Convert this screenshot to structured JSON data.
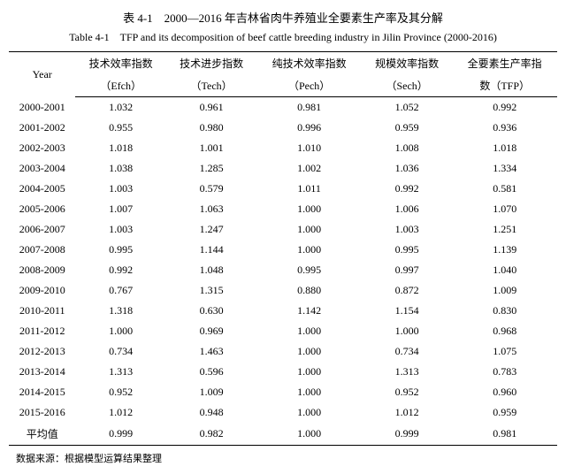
{
  "title_cn": "表 4-1　2000—2016 年吉林省肉牛养殖业全要素生产率及其分解",
  "title_en": "Table 4-1　TFP and its decomposition of beef cattle breeding industry in Jilin Province (2000-2016)",
  "headers": {
    "year": "Year",
    "c1a": "技术效率指数",
    "c1b": "（Efch）",
    "c2a": "技术进步指数",
    "c2b": "（Tech）",
    "c3a": "纯技术效率指数",
    "c3b": "（Pech）",
    "c4a": "规模效率指数",
    "c4b": "（Sech）",
    "c5a": "全要素生产率指",
    "c5b": "数（TFP）"
  },
  "rows": [
    [
      "2000-2001",
      "1.032",
      "0.961",
      "0.981",
      "1.052",
      "0.992"
    ],
    [
      "2001-2002",
      "0.955",
      "0.980",
      "0.996",
      "0.959",
      "0.936"
    ],
    [
      "2002-2003",
      "1.018",
      "1.001",
      "1.010",
      "1.008",
      "1.018"
    ],
    [
      "2003-2004",
      "1.038",
      "1.285",
      "1.002",
      "1.036",
      "1.334"
    ],
    [
      "2004-2005",
      "1.003",
      "0.579",
      "1.011",
      "0.992",
      "0.581"
    ],
    [
      "2005-2006",
      "1.007",
      "1.063",
      "1.000",
      "1.006",
      "1.070"
    ],
    [
      "2006-2007",
      "1.003",
      "1.247",
      "1.000",
      "1.003",
      "1.251"
    ],
    [
      "2007-2008",
      "0.995",
      "1.144",
      "1.000",
      "0.995",
      "1.139"
    ],
    [
      "2008-2009",
      "0.992",
      "1.048",
      "0.995",
      "0.997",
      "1.040"
    ],
    [
      "2009-2010",
      "0.767",
      "1.315",
      "0.880",
      "0.872",
      "1.009"
    ],
    [
      "2010-2011",
      "1.318",
      "0.630",
      "1.142",
      "1.154",
      "0.830"
    ],
    [
      "2011-2012",
      "1.000",
      "0.969",
      "1.000",
      "1.000",
      "0.968"
    ],
    [
      "2012-2013",
      "0.734",
      "1.463",
      "1.000",
      "0.734",
      "1.075"
    ],
    [
      "2013-2014",
      "1.313",
      "0.596",
      "1.000",
      "1.313",
      "0.783"
    ],
    [
      "2014-2015",
      "0.952",
      "1.009",
      "1.000",
      "0.952",
      "0.960"
    ],
    [
      "2015-2016",
      "1.012",
      "0.948",
      "1.000",
      "1.012",
      "0.959"
    ],
    [
      "平均值",
      "0.999",
      "0.982",
      "1.000",
      "0.999",
      "0.981"
    ]
  ],
  "source": "数据来源：根据模型运算结果整理"
}
